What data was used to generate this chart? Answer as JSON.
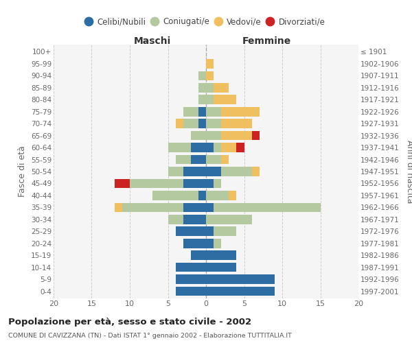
{
  "age_groups": [
    "0-4",
    "5-9",
    "10-14",
    "15-19",
    "20-24",
    "25-29",
    "30-34",
    "35-39",
    "40-44",
    "45-49",
    "50-54",
    "55-59",
    "60-64",
    "65-69",
    "70-74",
    "75-79",
    "80-84",
    "85-89",
    "90-94",
    "95-99",
    "100+"
  ],
  "birth_years": [
    "1997-2001",
    "1992-1996",
    "1987-1991",
    "1982-1986",
    "1977-1981",
    "1972-1976",
    "1967-1971",
    "1962-1966",
    "1957-1961",
    "1952-1956",
    "1947-1951",
    "1942-1946",
    "1937-1941",
    "1932-1936",
    "1927-1931",
    "1922-1926",
    "1917-1921",
    "1912-1916",
    "1907-1911",
    "1902-1906",
    "≤ 1901"
  ],
  "maschi": {
    "celibi": [
      4,
      4,
      4,
      2,
      3,
      4,
      3,
      3,
      1,
      3,
      3,
      2,
      2,
      0,
      1,
      1,
      0,
      0,
      0,
      0,
      0
    ],
    "coniugati": [
      0,
      0,
      0,
      0,
      0,
      0,
      2,
      8,
      6,
      7,
      2,
      2,
      3,
      2,
      2,
      2,
      1,
      1,
      1,
      0,
      0
    ],
    "vedovi": [
      0,
      0,
      0,
      0,
      0,
      0,
      0,
      1,
      0,
      0,
      0,
      0,
      0,
      0,
      1,
      0,
      0,
      0,
      0,
      0,
      0
    ],
    "divorziati": [
      0,
      0,
      0,
      0,
      0,
      0,
      0,
      0,
      0,
      2,
      0,
      0,
      0,
      0,
      0,
      0,
      0,
      0,
      0,
      0,
      0
    ]
  },
  "femmine": {
    "nubili": [
      9,
      9,
      4,
      4,
      1,
      1,
      0,
      1,
      0,
      1,
      2,
      0,
      1,
      0,
      0,
      0,
      0,
      0,
      0,
      0,
      0
    ],
    "coniugate": [
      0,
      0,
      0,
      0,
      1,
      3,
      6,
      14,
      3,
      1,
      4,
      2,
      1,
      2,
      2,
      2,
      1,
      1,
      0,
      0,
      0
    ],
    "vedove": [
      0,
      0,
      0,
      0,
      0,
      0,
      0,
      0,
      1,
      0,
      1,
      1,
      2,
      4,
      4,
      5,
      3,
      2,
      1,
      1,
      0
    ],
    "divorziate": [
      0,
      0,
      0,
      0,
      0,
      0,
      0,
      0,
      0,
      0,
      0,
      0,
      1,
      1,
      0,
      0,
      0,
      0,
      0,
      0,
      0
    ]
  },
  "colors": {
    "celibi": "#2e6da4",
    "coniugati": "#b5c9a0",
    "vedovi": "#f0c060",
    "divorziati": "#cc2222"
  },
  "bg_color": "#f5f5f5",
  "xlim": 20,
  "title": "Popolazione per età, sesso e stato civile - 2002",
  "subtitle": "COMUNE DI CAVIZZANA (TN) - Dati ISTAT 1° gennaio 2002 - Elaborazione TUTTITALIA.IT",
  "ylabel_left": "Fasce di età",
  "ylabel_right": "Anni di nascita",
  "xlabel_maschi": "Maschi",
  "xlabel_femmine": "Femmine"
}
